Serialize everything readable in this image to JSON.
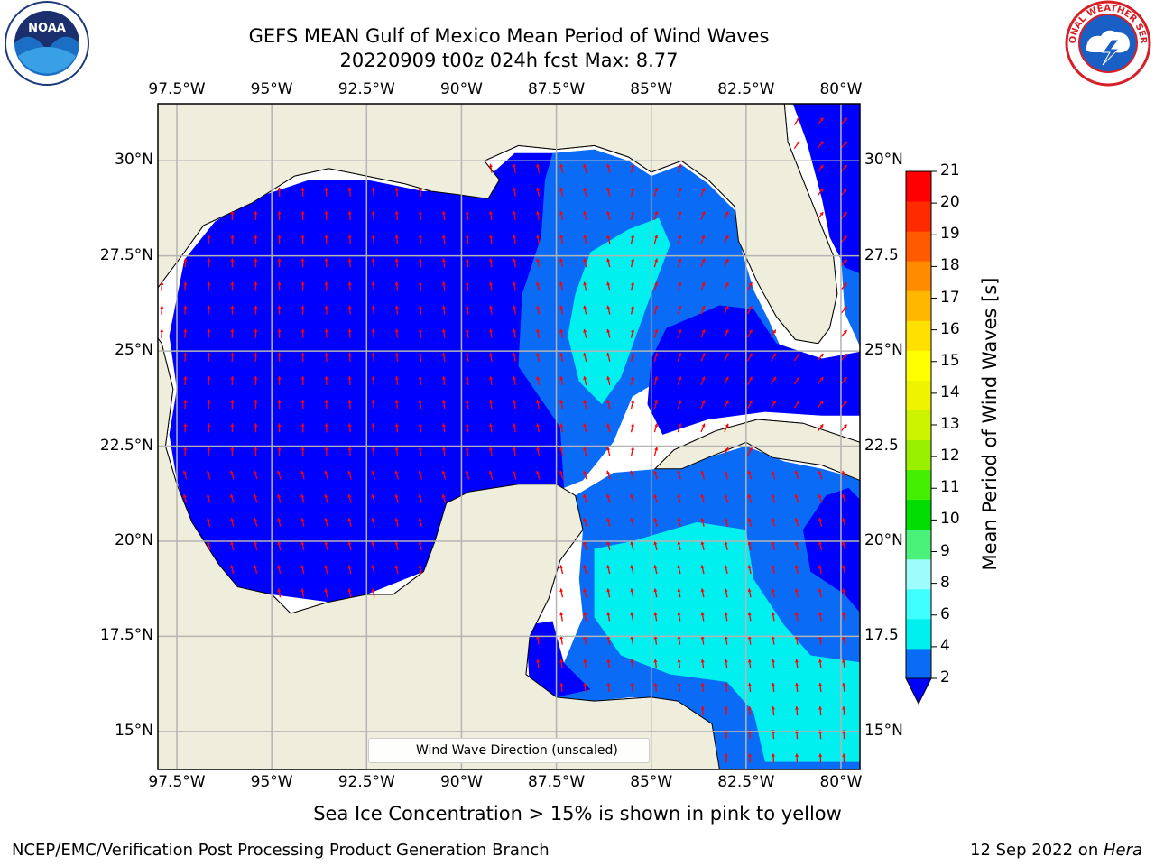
{
  "title_line1": "GEFS MEAN Gulf of Mexico Mean Period of Wind Waves",
  "title_line2": "20220909 t00z 024h fcst   Max: 8.77",
  "map": {
    "lon_range": [
      -98,
      -79.5
    ],
    "lat_range": [
      14,
      31.5
    ],
    "lon_ticks": [
      "97.5°W",
      "95°W",
      "92.5°W",
      "90°W",
      "87.5°W",
      "85°W",
      "82.5°W",
      "80°W"
    ],
    "lon_tick_values": [
      -97.5,
      -95,
      -92.5,
      -90,
      -87.5,
      -85,
      -82.5,
      -80
    ],
    "lat_ticks": [
      "15°N",
      "17.5°N",
      "20°N",
      "22.5°N",
      "25°N",
      "27.5°N",
      "30°N"
    ],
    "lat_tick_values": [
      15,
      17.5,
      20,
      22.5,
      25,
      27.5,
      30
    ],
    "lat_ticks_right": [
      "15°N",
      "17.5",
      "20°N",
      "22.5",
      "25°N",
      "27.5",
      "30°N"
    ],
    "grid": true,
    "land_color": "#efeddc",
    "arrow_color": "#ff0000"
  },
  "legend": {
    "label": "Wind Wave Direction (unscaled)",
    "placement": "lower-center"
  },
  "colorbar": {
    "label": "Mean Period of Wind Waves [s]",
    "ticks": [
      "2",
      "4",
      "6",
      "8",
      "9",
      "10",
      "11",
      "12",
      "13",
      "14",
      "15",
      "16",
      "17",
      "18",
      "19",
      "20",
      "21"
    ],
    "colors": [
      "#0a6cf6",
      "#00f0f0",
      "#40ffff",
      "#9dfcfc",
      "#4af27a",
      "#00dd00",
      "#44ee00",
      "#99f000",
      "#ccf400",
      "#eef400",
      "#ffff00",
      "#ffe000",
      "#ffb700",
      "#ff8c00",
      "#ff5a00",
      "#ff2a00",
      "#ff0000"
    ],
    "extend_color": "#0000ff"
  },
  "bottom_note": "Sea Ice Concentration > 15% is shown in pink to yellow",
  "footer_left": "NCEP/EMC/Verification Post Processing Product Generation Branch",
  "footer_right_prefix": "12 Sep 2022 on ",
  "footer_right_host": "Hera",
  "logos": {
    "noaa_text": "NOAA",
    "nws_text": "NATIONAL WEATHER SERVICE"
  }
}
